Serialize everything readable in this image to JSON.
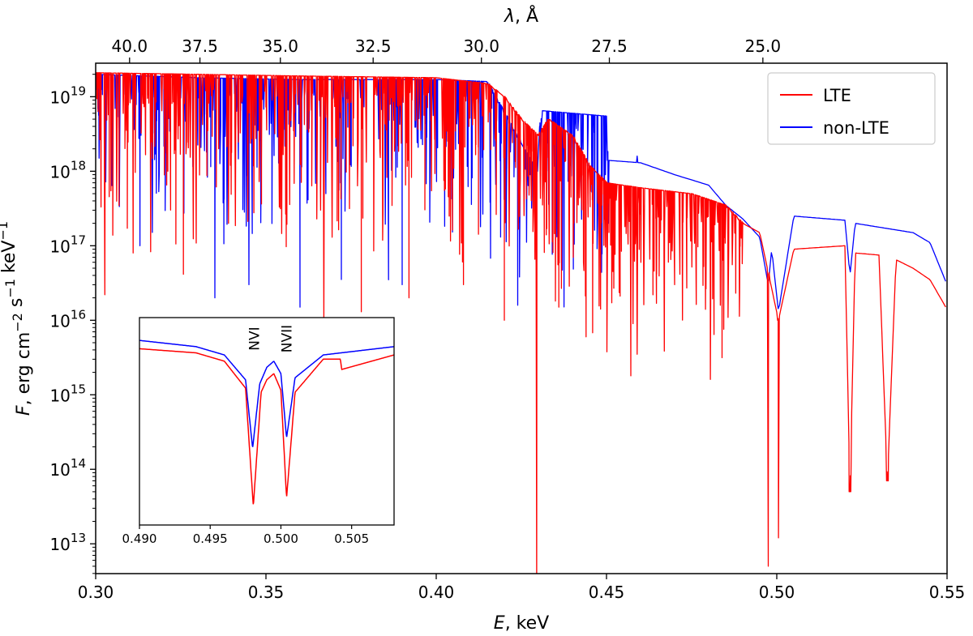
{
  "chart_data": [
    {
      "type": "line",
      "xlabel": "E, keV",
      "ylabel": "F, erg cm^-2 s^-1 keV^-1",
      "top_xlabel": "λ, Å",
      "xlim": [
        0.3,
        0.55
      ],
      "ylim_log10": [
        12.6,
        19.45
      ],
      "yscale": "log",
      "x_ticks": [
        "0.30",
        "0.35",
        "0.40",
        "0.45",
        "0.50",
        "0.55"
      ],
      "y_ticks": [
        {
          "base": "10",
          "exp": "13",
          "value": 10000000000000.0
        },
        {
          "base": "10",
          "exp": "14",
          "value": 100000000000000.0
        },
        {
          "base": "10",
          "exp": "15",
          "value": 1000000000000000.0
        },
        {
          "base": "10",
          "exp": "16",
          "value": 1e+16
        },
        {
          "base": "10",
          "exp": "17",
          "value": 1e+17
        },
        {
          "base": "10",
          "exp": "18",
          "value": 1e+18
        },
        {
          "base": "10",
          "exp": "19",
          "value": 1e+19
        }
      ],
      "top_ticks": [
        "40.0",
        "37.5",
        "35.0",
        "32.5",
        "30.0",
        "27.5",
        "25.0"
      ],
      "legend_position": "top-right",
      "series": [
        {
          "name": "LTE",
          "color": "#ff0000",
          "continuum": [
            [
              0.3,
              2.1e+19
            ],
            [
              0.33,
              2e+19
            ],
            [
              0.36,
              1.9e+19
            ],
            [
              0.4,
              1.8e+19
            ],
            [
              0.415,
              1.5e+19
            ],
            [
              0.42,
              1e+19
            ],
            [
              0.425,
              5e+18
            ],
            [
              0.43,
              3e+18
            ],
            [
              0.433,
              5e+18
            ],
            [
              0.44,
              3e+18
            ],
            [
              0.445,
              1.2e+18
            ],
            [
              0.45,
              7e+17
            ],
            [
              0.46,
              6e+17
            ],
            [
              0.475,
              5e+17
            ],
            [
              0.485,
              3.5e+17
            ],
            [
              0.49,
              2e+17
            ],
            [
              0.495,
              1.5e+17
            ],
            [
              0.5005,
              1e+16
            ],
            [
              0.505,
              9e+16
            ],
            [
              0.52,
              1e+17
            ],
            [
              0.5215,
              50000000000000.0
            ],
            [
              0.523,
              8e+16
            ],
            [
              0.53,
              7.5e+16
            ],
            [
              0.5325,
              70000000000000.0
            ],
            [
              0.535,
              6.5e+16
            ],
            [
              0.54,
              5e+16
            ],
            [
              0.545,
              3.5e+16
            ],
            [
              0.55,
              1.4e+16
            ]
          ],
          "absorption_lines": [
            [
              0.3027,
              2.2e+16
            ],
            [
              0.311,
              8e+16
            ],
            [
              0.339,
              2e+17
            ],
            [
              0.367,
              1e+16
            ],
            [
              0.378,
              1.3e+16
            ],
            [
              0.392,
              2e+16
            ],
            [
              0.408,
              3e+16
            ],
            [
              0.42,
              1e+16
            ],
            [
              0.4295,
              2700000000000.0
            ],
            [
              0.436,
              1.5e+16
            ],
            [
              0.444,
              6000000000000000.0
            ],
            [
              0.459,
              3500000000000000.0
            ],
            [
              0.47,
              3e+16
            ],
            [
              0.4975,
              5000000000000.0
            ],
            [
              0.5005,
              12000000000000.0
            ],
            [
              0.5215,
              50000000000000.0
            ],
            [
              0.5325,
              70000000000000.0
            ]
          ]
        },
        {
          "name": "non-LTE",
          "color": "#0000ff",
          "continuum": [
            [
              0.3,
              2e+19
            ],
            [
              0.33,
              1.8e+19
            ],
            [
              0.36,
              1.7e+19
            ],
            [
              0.4,
              1.7e+19
            ],
            [
              0.415,
              1.6e+19
            ],
            [
              0.4295,
              1e+18
            ],
            [
              0.431,
              6.5e+18
            ],
            [
              0.45,
              5.5e+18
            ],
            [
              0.4505,
              1.4e+18
            ],
            [
              0.46,
              1.3e+18
            ],
            [
              0.47,
              9e+17
            ],
            [
              0.48,
              6.5e+17
            ],
            [
              0.485,
              3.5e+17
            ],
            [
              0.49,
              2.3e+17
            ],
            [
              0.495,
              1.3e+17
            ],
            [
              0.4975,
              3e+16
            ],
            [
              0.4985,
              9e+16
            ],
            [
              0.5005,
              1.3e+16
            ],
            [
              0.505,
              2.5e+17
            ],
            [
              0.52,
              2.2e+17
            ],
            [
              0.5215,
              4e+16
            ],
            [
              0.523,
              2e+17
            ],
            [
              0.54,
              1.5e+17
            ],
            [
              0.545,
              1.1e+17
            ],
            [
              0.55,
              3e+16
            ]
          ],
          "absorption_lines": [
            [
              0.301,
              1.5e+18
            ],
            [
              0.313,
              1e+17
            ],
            [
              0.335,
              2e+16
            ],
            [
              0.345,
              3e+16
            ],
            [
              0.36,
              1.5e+16
            ],
            [
              0.386,
              3.5e+16
            ],
            [
              0.39,
              3e+16
            ],
            [
              0.413,
              1.8e+17
            ],
            [
              0.4295,
              8e+17
            ],
            [
              0.4505,
              2e+17
            ],
            [
              0.459,
              1.6e+18
            ]
          ]
        }
      ]
    },
    {
      "type": "line",
      "role": "inset",
      "xlim": [
        0.49,
        0.508
      ],
      "yscale": "log",
      "x_ticks": [
        "0.490",
        "0.495",
        "0.500",
        "0.505"
      ],
      "annotations": [
        "NVI",
        "NVII"
      ],
      "series": [
        {
          "name": "non-LTE",
          "color": "#0000ff",
          "points": [
            [
              0.49,
              0.89
            ],
            [
              0.494,
              0.86
            ],
            [
              0.496,
              0.82
            ],
            [
              0.4975,
              0.7
            ],
            [
              0.498,
              0.37
            ],
            [
              0.4985,
              0.68
            ],
            [
              0.499,
              0.76
            ],
            [
              0.4995,
              0.79
            ],
            [
              0.5,
              0.73
            ],
            [
              0.5004,
              0.42
            ],
            [
              0.501,
              0.71
            ],
            [
              0.503,
              0.82
            ],
            [
              0.508,
              0.86
            ]
          ]
        },
        {
          "name": "LTE",
          "color": "#ff0000",
          "points": [
            [
              0.49,
              0.85
            ],
            [
              0.494,
              0.83
            ],
            [
              0.496,
              0.79
            ],
            [
              0.4975,
              0.66
            ],
            [
              0.49805,
              0.09
            ],
            [
              0.4986,
              0.64
            ],
            [
              0.499,
              0.7
            ],
            [
              0.4995,
              0.73
            ],
            [
              0.5,
              0.65
            ],
            [
              0.5004,
              0.13
            ],
            [
              0.501,
              0.64
            ],
            [
              0.503,
              0.8
            ],
            [
              0.5042,
              0.8
            ],
            [
              0.5043,
              0.75
            ],
            [
              0.508,
              0.82
            ]
          ]
        }
      ]
    }
  ]
}
